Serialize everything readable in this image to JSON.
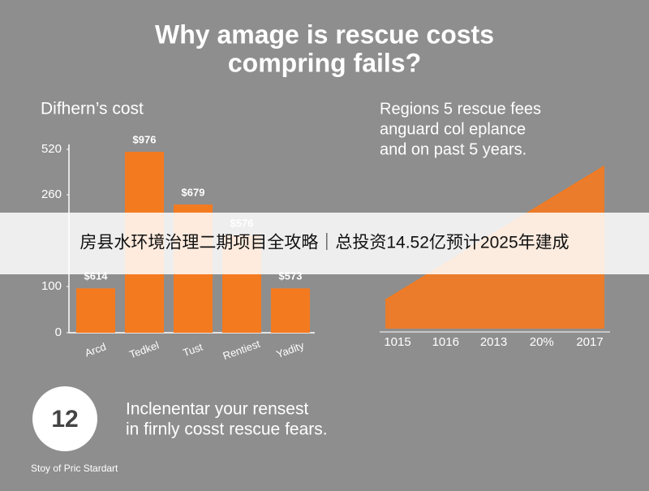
{
  "header": {
    "title_lines": [
      "Why amage is rescue costs",
      "compring fails?"
    ]
  },
  "chart_data": [
    {
      "type": "bar",
      "title": "Difhern’s cost",
      "categories": [
        "Arcd",
        "Tedkel",
        "Tust",
        "Rentiest",
        "Yadity"
      ],
      "values": [
        96,
        506,
        243,
        189,
        96
      ],
      "annotations": [
        "$614",
        "$976",
        "$679",
        "$576",
        "$573"
      ],
      "color": "#f47a20",
      "ylim": [
        0,
        520
      ],
      "yticks": [
        0,
        100,
        260,
        520
      ]
    },
    {
      "type": "area",
      "title_lines": [
        "Regions 5 rescue fees",
        "anguard col eplance",
        "and on past 5 years."
      ],
      "categories": [
        "1015",
        "1016",
        "2013",
        "20%",
        "2017"
      ],
      "values": [
        35,
        76,
        118,
        159,
        200
      ],
      "color": "#f47a20",
      "ylim": [
        0,
        200
      ]
    }
  ],
  "callout": {
    "number": "12",
    "text_lines": [
      "Inclenentar your rensest",
      "in firnly cosst rescue fears."
    ]
  },
  "footer": "Stoy of Pric Stardart",
  "banner": "房县水环境治理二期项目全攻略｜总投资14.52亿预计2025年建成"
}
